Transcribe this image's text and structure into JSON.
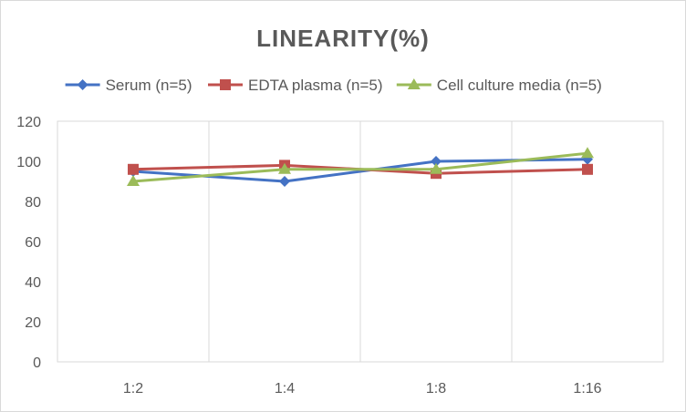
{
  "chart_data": {
    "type": "line",
    "title": "LINEARITY(%)",
    "xlabel": "",
    "ylabel": "",
    "categories": [
      "1:2",
      "1:4",
      "1:8",
      "1:16"
    ],
    "ylim": [
      0,
      120
    ],
    "yticks": [
      0,
      20,
      40,
      60,
      80,
      100,
      120
    ],
    "grid": "vertical",
    "legend_position": "top",
    "series": [
      {
        "name": "Serum (n=5)",
        "color": "#4472c4",
        "marker": "diamond",
        "values": [
          95,
          90,
          100,
          101
        ]
      },
      {
        "name": "EDTA plasma (n=5)",
        "color": "#c0504d",
        "marker": "square",
        "values": [
          96,
          98,
          94,
          96
        ]
      },
      {
        "name": "Cell culture media (n=5)",
        "color": "#9bbb59",
        "marker": "triangle",
        "values": [
          90,
          96,
          96,
          104
        ]
      }
    ]
  }
}
